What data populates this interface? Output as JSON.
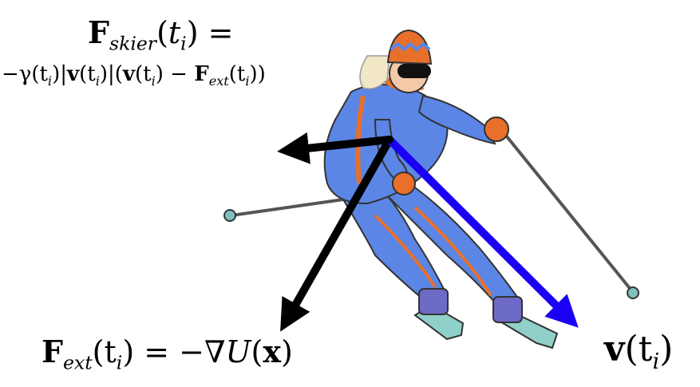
{
  "labels": {
    "skier_force": {
      "symbol": "F",
      "subscript": "skier",
      "arg_open": "(",
      "arg_var": "t",
      "arg_sub": "i",
      "arg_close_eq": ") ="
    },
    "skier_force_rhs": {
      "text": "−γ(t",
      "p1_sub": "i",
      "p2": ")|",
      "v": "v",
      "p3": "(t",
      "p3_sub": "i",
      "p4": ")|(",
      "v2": "v",
      "p5": "(t",
      "p5_sub": "i",
      "p6": ") − ",
      "F": "F",
      "F_sub": "ext",
      "p7": "(t",
      "p7_sub": "i",
      "p8": "))"
    },
    "external_force": {
      "F": "F",
      "F_sub": "ext",
      "p1": "(t",
      "p1_sub": "i",
      "p2": ") = −∇",
      "U": "U",
      "p3": "(",
      "x": "x",
      "p4": ")"
    },
    "velocity": {
      "v": "v",
      "p1": "(t",
      "p1_sub": "i",
      "p2": ")"
    }
  },
  "colors": {
    "force_arrows": "#000000",
    "velocity_arrow": "#1a00f5",
    "suit": "#5b86e5",
    "suit_stripe": "#e8702a",
    "boots": "#6d6ac8",
    "skis": "#8fd0c8",
    "poles": "#555555",
    "hair": "#f1e6c6",
    "skin": "#f3c9a8",
    "goggles": "#111111"
  }
}
